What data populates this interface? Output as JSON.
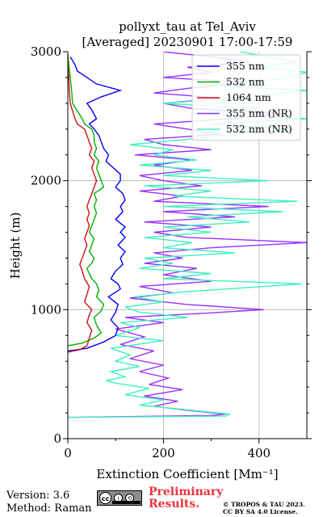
{
  "chart_data": {
    "type": "line",
    "title": "pollyxt_tau at Tel_Aviv",
    "subtitle": "[Averaged] 20230901 17:00-17:59",
    "xlabel": "Extinction Coefficient [Mm⁻¹]",
    "ylabel": "Height (m)",
    "xlim": [
      0,
      500
    ],
    "ylim": [
      0,
      3000
    ],
    "x_ticks": [
      "0",
      "200",
      "400"
    ],
    "y_ticks": [
      "0",
      "1000",
      "2000",
      "3000"
    ],
    "grid": true,
    "legend_position": "top-right",
    "series": [
      {
        "name": "355 nm",
        "color": "#0000ff",
        "points": [
          [
            0,
            680
          ],
          [
            40,
            700
          ],
          [
            75,
            750
          ],
          [
            100,
            800
          ],
          [
            105,
            860
          ],
          [
            90,
            920
          ],
          [
            100,
            980
          ],
          [
            105,
            1040
          ],
          [
            85,
            1100
          ],
          [
            110,
            1160
          ],
          [
            105,
            1200
          ],
          [
            90,
            1240
          ],
          [
            100,
            1300
          ],
          [
            115,
            1350
          ],
          [
            110,
            1400
          ],
          [
            120,
            1450
          ],
          [
            105,
            1500
          ],
          [
            120,
            1560
          ],
          [
            110,
            1600
          ],
          [
            120,
            1640
          ],
          [
            100,
            1700
          ],
          [
            115,
            1760
          ],
          [
            110,
            1800
          ],
          [
            120,
            1850
          ],
          [
            115,
            1900
          ],
          [
            100,
            1950
          ],
          [
            110,
            2000
          ],
          [
            110,
            2050
          ],
          [
            95,
            2100
          ],
          [
            80,
            2150
          ],
          [
            85,
            2200
          ],
          [
            75,
            2250
          ],
          [
            70,
            2300
          ],
          [
            65,
            2350
          ],
          [
            55,
            2400
          ],
          [
            45,
            2440
          ],
          [
            60,
            2480
          ],
          [
            50,
            2550
          ],
          [
            40,
            2600
          ],
          [
            70,
            2650
          ],
          [
            110,
            2700
          ],
          [
            60,
            2750
          ],
          [
            40,
            2800
          ],
          [
            20,
            2850
          ],
          [
            15,
            2900
          ],
          [
            5,
            2960
          ]
        ]
      },
      {
        "name": "532 nm",
        "color": "#00b000",
        "points": [
          [
            0,
            720
          ],
          [
            30,
            740
          ],
          [
            55,
            780
          ],
          [
            70,
            820
          ],
          [
            60,
            880
          ],
          [
            55,
            940
          ],
          [
            70,
            990
          ],
          [
            75,
            1040
          ],
          [
            60,
            1100
          ],
          [
            65,
            1150
          ],
          [
            60,
            1200
          ],
          [
            50,
            1240
          ],
          [
            45,
            1280
          ],
          [
            40,
            1320
          ],
          [
            50,
            1360
          ],
          [
            55,
            1400
          ],
          [
            45,
            1450
          ],
          [
            50,
            1500
          ],
          [
            55,
            1550
          ],
          [
            45,
            1600
          ],
          [
            50,
            1650
          ],
          [
            55,
            1700
          ],
          [
            60,
            1750
          ],
          [
            55,
            1800
          ],
          [
            60,
            1850
          ],
          [
            55,
            1900
          ],
          [
            75,
            1950
          ],
          [
            70,
            2000
          ],
          [
            65,
            2050
          ],
          [
            60,
            2100
          ],
          [
            65,
            2150
          ],
          [
            55,
            2200
          ],
          [
            60,
            2250
          ],
          [
            55,
            2300
          ],
          [
            55,
            2350
          ],
          [
            50,
            2400
          ],
          [
            35,
            2440
          ],
          [
            30,
            2480
          ],
          [
            20,
            2540
          ],
          [
            10,
            2600
          ],
          [
            8,
            2700
          ],
          [
            5,
            2800
          ],
          [
            2,
            2900
          ],
          [
            0,
            2980
          ]
        ]
      },
      {
        "name": "1064 nm",
        "color": "#d01010",
        "points": [
          [
            0,
            670
          ],
          [
            25,
            690
          ],
          [
            40,
            720
          ],
          [
            45,
            780
          ],
          [
            50,
            840
          ],
          [
            40,
            900
          ],
          [
            45,
            960
          ],
          [
            50,
            1000
          ],
          [
            35,
            1060
          ],
          [
            40,
            1120
          ],
          [
            45,
            1180
          ],
          [
            35,
            1240
          ],
          [
            30,
            1300
          ],
          [
            25,
            1350
          ],
          [
            30,
            1400
          ],
          [
            35,
            1450
          ],
          [
            40,
            1500
          ],
          [
            35,
            1550
          ],
          [
            40,
            1600
          ],
          [
            45,
            1650
          ],
          [
            40,
            1700
          ],
          [
            45,
            1750
          ],
          [
            40,
            1800
          ],
          [
            45,
            1850
          ],
          [
            50,
            1900
          ],
          [
            55,
            1950
          ],
          [
            60,
            2000
          ],
          [
            55,
            2050
          ],
          [
            50,
            2100
          ],
          [
            55,
            2150
          ],
          [
            45,
            2200
          ],
          [
            50,
            2250
          ],
          [
            45,
            2300
          ],
          [
            40,
            2350
          ],
          [
            35,
            2400
          ],
          [
            20,
            2440
          ],
          [
            15,
            2480
          ],
          [
            10,
            2540
          ],
          [
            5,
            2600
          ],
          [
            3,
            2700
          ],
          [
            2,
            2800
          ],
          [
            0,
            2900
          ],
          [
            0,
            2980
          ]
        ]
      },
      {
        "name": "355 nm (NR)",
        "color": "#9b30ff",
        "points": [
          [
            0,
            165
          ],
          [
            300,
            180
          ],
          [
            330,
            190
          ],
          [
            250,
            220
          ],
          [
            180,
            250
          ],
          [
            230,
            290
          ],
          [
            160,
            330
          ],
          [
            240,
            380
          ],
          [
            170,
            420
          ],
          [
            210,
            470
          ],
          [
            150,
            520
          ],
          [
            200,
            570
          ],
          [
            130,
            620
          ],
          [
            180,
            680
          ],
          [
            110,
            730
          ],
          [
            160,
            790
          ],
          [
            100,
            850
          ],
          [
            200,
            900
          ],
          [
            120,
            940
          ],
          [
            300,
            975
          ],
          [
            410,
            1000
          ],
          [
            250,
            1040
          ],
          [
            130,
            1090
          ],
          [
            220,
            1130
          ],
          [
            150,
            1180
          ],
          [
            300,
            1220
          ],
          [
            200,
            1270
          ],
          [
            270,
            1320
          ],
          [
            160,
            1360
          ],
          [
            240,
            1400
          ],
          [
            180,
            1440
          ],
          [
            300,
            1480
          ],
          [
            500,
            1520
          ],
          [
            250,
            1560
          ],
          [
            180,
            1600
          ],
          [
            300,
            1640
          ],
          [
            160,
            1680
          ],
          [
            350,
            1720
          ],
          [
            200,
            1760
          ],
          [
            420,
            1800
          ],
          [
            180,
            1840
          ],
          [
            240,
            1880
          ],
          [
            150,
            1920
          ],
          [
            280,
            1960
          ],
          [
            200,
            2000
          ],
          [
            150,
            2040
          ],
          [
            260,
            2080
          ],
          [
            180,
            2120
          ],
          [
            260,
            2160
          ],
          [
            140,
            2200
          ],
          [
            300,
            2240
          ],
          [
            200,
            2280
          ],
          [
            160,
            2320
          ],
          [
            320,
            2360
          ],
          [
            250,
            2400
          ],
          [
            180,
            2440
          ],
          [
            340,
            2480
          ],
          [
            450,
            2520
          ],
          [
            260,
            2560
          ],
          [
            200,
            2600
          ],
          [
            320,
            2640
          ],
          [
            180,
            2680
          ],
          [
            260,
            2720
          ],
          [
            380,
            2760
          ],
          [
            200,
            2800
          ],
          [
            300,
            2840
          ],
          [
            250,
            2880
          ],
          [
            380,
            2920
          ],
          [
            300,
            2960
          ],
          [
            200,
            3000
          ]
        ]
      },
      {
        "name": "532 nm (NR)",
        "color": "#40f0c0",
        "points": [
          [
            0,
            165
          ],
          [
            330,
            175
          ],
          [
            340,
            190
          ],
          [
            260,
            220
          ],
          [
            150,
            260
          ],
          [
            200,
            300
          ],
          [
            120,
            340
          ],
          [
            170,
            390
          ],
          [
            100,
            430
          ],
          [
            80,
            450
          ],
          [
            120,
            480
          ],
          [
            90,
            520
          ],
          [
            150,
            560
          ],
          [
            100,
            600
          ],
          [
            130,
            650
          ],
          [
            90,
            700
          ],
          [
            200,
            760
          ],
          [
            100,
            800
          ],
          [
            150,
            860
          ],
          [
            110,
            900
          ],
          [
            250,
            940
          ],
          [
            150,
            980
          ],
          [
            120,
            1020
          ],
          [
            200,
            1060
          ],
          [
            140,
            1100
          ],
          [
            250,
            1140
          ],
          [
            490,
            1200
          ],
          [
            200,
            1240
          ],
          [
            300,
            1280
          ],
          [
            150,
            1320
          ],
          [
            220,
            1360
          ],
          [
            160,
            1400
          ],
          [
            350,
            1440
          ],
          [
            200,
            1480
          ],
          [
            260,
            1520
          ],
          [
            160,
            1560
          ],
          [
            300,
            1600
          ],
          [
            200,
            1640
          ],
          [
            380,
            1680
          ],
          [
            250,
            1720
          ],
          [
            450,
            1760
          ],
          [
            200,
            1800
          ],
          [
            480,
            1840
          ],
          [
            220,
            1880
          ],
          [
            300,
            1920
          ],
          [
            160,
            1960
          ],
          [
            420,
            2000
          ],
          [
            200,
            2040
          ],
          [
            300,
            2080
          ],
          [
            150,
            2120
          ],
          [
            270,
            2160
          ],
          [
            180,
            2200
          ],
          [
            220,
            2240
          ],
          [
            130,
            2280
          ],
          [
            250,
            2320
          ],
          [
            350,
            2360
          ],
          [
            480,
            2400
          ],
          [
            300,
            2440
          ],
          [
            500,
            2480
          ],
          [
            260,
            2520
          ],
          [
            400,
            2560
          ],
          [
            200,
            2600
          ],
          [
            350,
            2640
          ],
          [
            500,
            2700
          ],
          [
            300,
            2740
          ],
          [
            450,
            2790
          ],
          [
            500,
            2840
          ],
          [
            400,
            2880
          ],
          [
            480,
            2920
          ],
          [
            420,
            2960
          ],
          [
            360,
            3000
          ]
        ]
      }
    ]
  },
  "footer": {
    "version": "Version: 3.6",
    "method": "Method: Raman",
    "preliminary_line1": "Preliminary",
    "preliminary_line2": "Results.",
    "copyright_line1": "© TROPOS & TAU 2023.",
    "copyright_line2": "CC BY SA 4.0 License.",
    "license_badge_text": "BY SA"
  }
}
